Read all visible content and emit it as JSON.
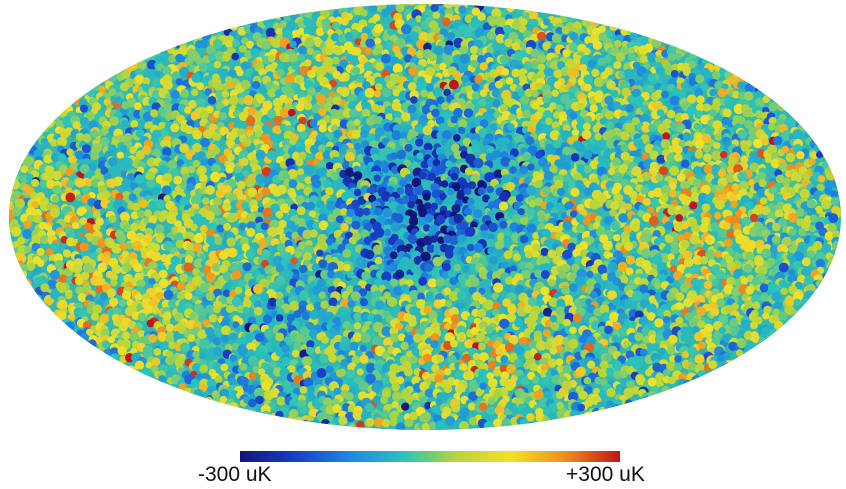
{
  "chart_data": {
    "type": "heatmap",
    "projection": "mollweide",
    "title": "",
    "grid": false,
    "legend": "bottom-center",
    "colorbar": {
      "min": -300,
      "max": 300,
      "unit": "uK",
      "min_label": "-300 uK",
      "max_label": "+300 uK",
      "colors": [
        "#13147a",
        "#1a3cc8",
        "#1e86e0",
        "#29c3bd",
        "#b8d43a",
        "#f2e12a",
        "#f08c1e",
        "#c0141a"
      ]
    },
    "regions": [
      {
        "lon": -5,
        "lat": -5,
        "value": -170
      },
      {
        "lon": 15,
        "lat": 0,
        "value": -130
      },
      {
        "lon": -20,
        "lat": 25,
        "value": -90
      },
      {
        "lon": 35,
        "lat": 25,
        "value": -110
      },
      {
        "lon": -120,
        "lat": 10,
        "value": -120
      },
      {
        "lon": 150,
        "lat": -5,
        "value": -140
      },
      {
        "lon": 90,
        "lat": -25,
        "value": -100
      },
      {
        "lon": -60,
        "lat": -40,
        "value": -90
      },
      {
        "lon": 140,
        "lat": 5,
        "value": 170
      },
      {
        "lon": 120,
        "lat": -15,
        "value": 150
      },
      {
        "lon": -150,
        "lat": 0,
        "value": 140
      },
      {
        "lon": -100,
        "lat": -5,
        "value": 110
      },
      {
        "lon": -140,
        "lat": -35,
        "value": 120
      },
      {
        "lon": -50,
        "lat": 60,
        "value": 110
      },
      {
        "lon": 60,
        "lat": 50,
        "value": 90
      },
      {
        "lon": 30,
        "lat": -55,
        "value": 120
      },
      {
        "lon": 70,
        "lat": -5,
        "value": 90
      },
      {
        "lon": -80,
        "lat": 30,
        "value": 80
      }
    ]
  }
}
